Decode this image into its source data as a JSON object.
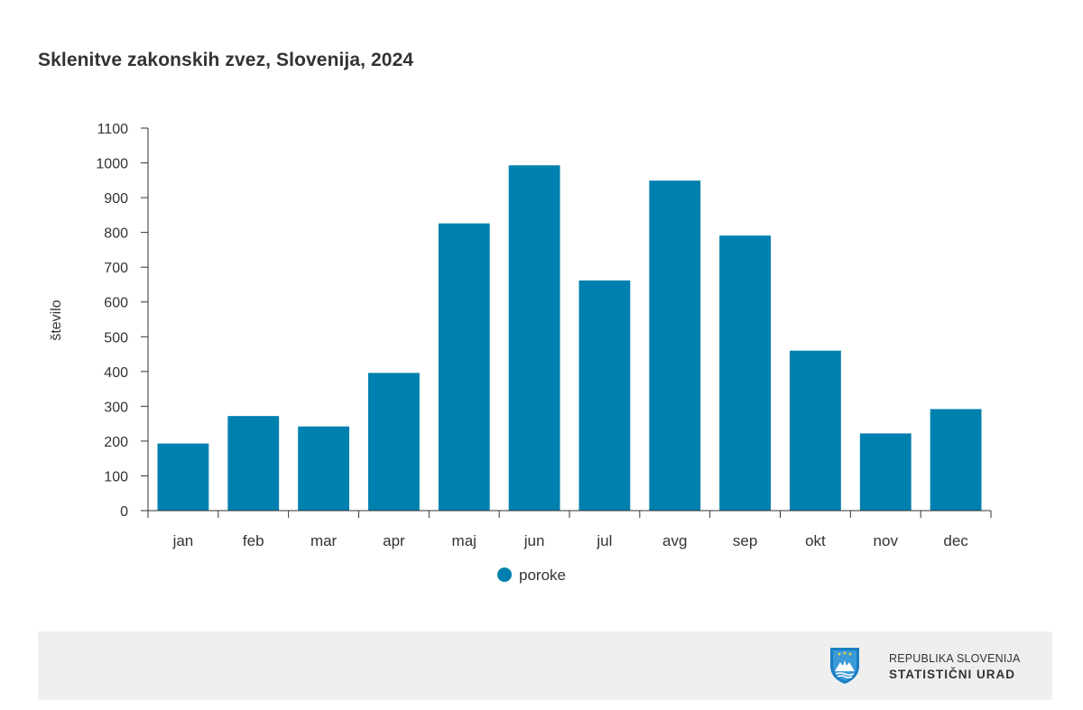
{
  "chart_data": {
    "type": "bar",
    "title": "Sklenitve zakonskih zvez, Slovenija, 2024",
    "ylabel": "število",
    "xlabel": "",
    "categories": [
      "jan",
      "feb",
      "mar",
      "apr",
      "maj",
      "jun",
      "jul",
      "avg",
      "sep",
      "okt",
      "nov",
      "dec"
    ],
    "series": [
      {
        "name": "poroke",
        "values": [
          193,
          272,
          242,
          396,
          826,
          993,
          662,
          949,
          791,
          460,
          222,
          292
        ]
      }
    ],
    "ylim": [
      0,
      1100
    ],
    "yticks": [
      0,
      100,
      200,
      300,
      400,
      500,
      600,
      700,
      800,
      900,
      1000,
      1100
    ],
    "grid": false,
    "legend": "bottom-center",
    "colors": {
      "bar": "#0080ae",
      "axis": "#333333",
      "text": "#333333"
    }
  },
  "footer": {
    "logo_line1": "REPUBLIKA SLOVENIJA",
    "logo_line2": "STATISTIČNI URAD",
    "logo_icon": "coat-of-arms-shield-icon"
  }
}
